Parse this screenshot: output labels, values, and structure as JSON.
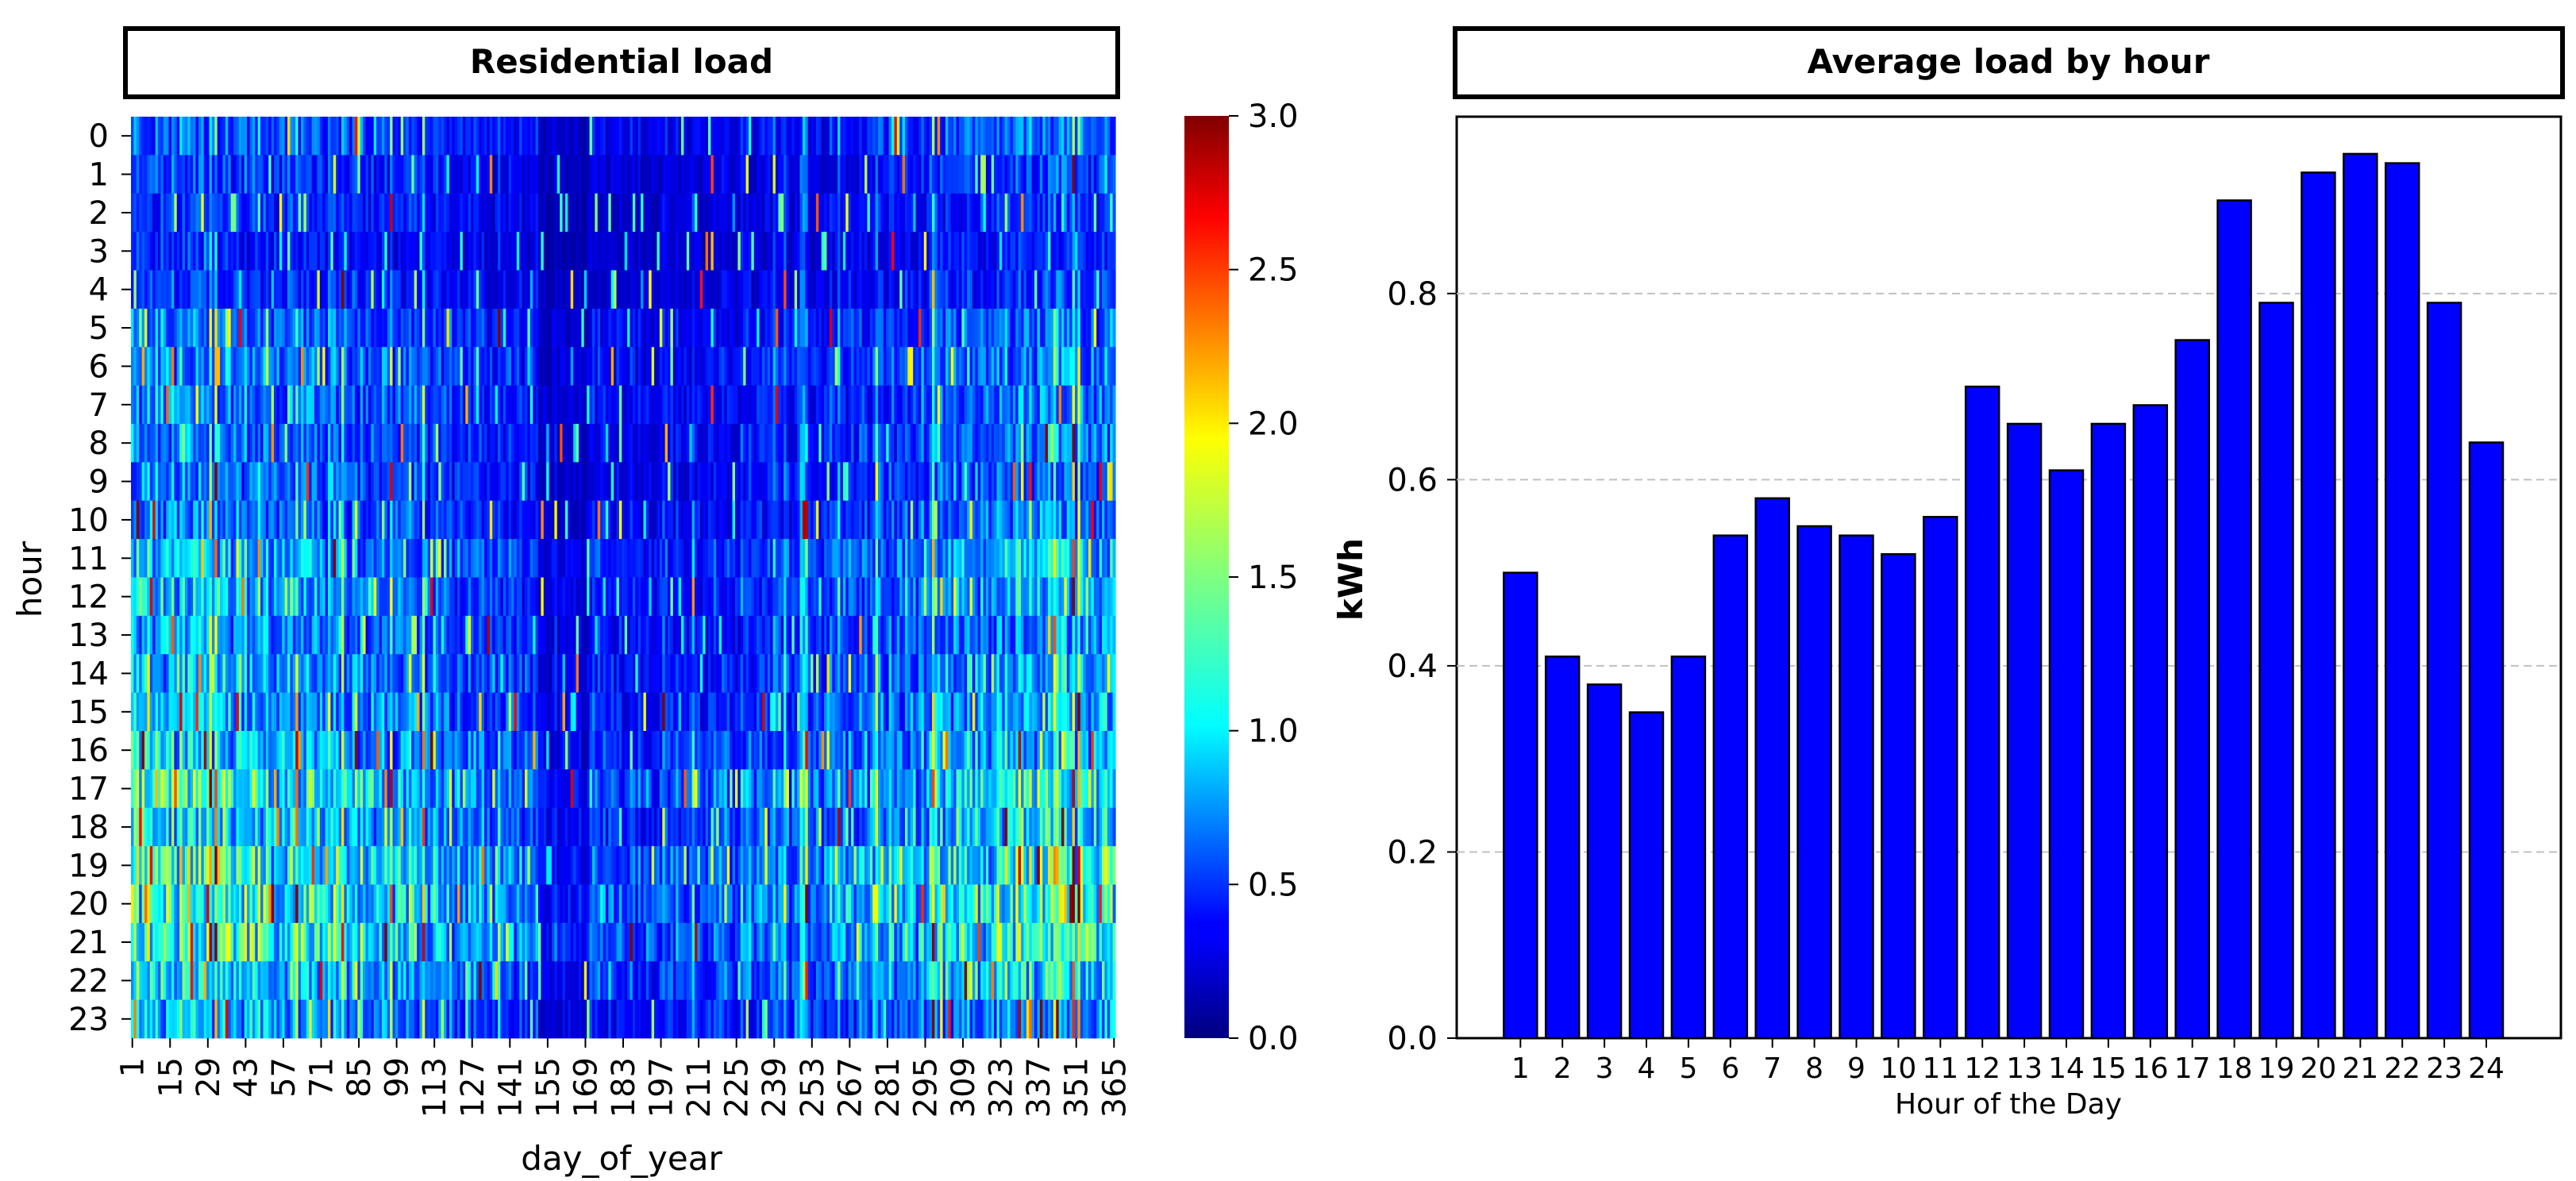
{
  "chart_data": [
    {
      "type": "heatmap",
      "title": "Residential load",
      "xlabel": "day_of_year",
      "ylabel": "hour",
      "x_ticks": [
        "1",
        "15",
        "29",
        "43",
        "57",
        "71",
        "85",
        "99",
        "113",
        "127",
        "141",
        "155",
        "169",
        "183",
        "197",
        "211",
        "225",
        "239",
        "253",
        "267",
        "281",
        "295",
        "309",
        "323",
        "337",
        "351",
        "365"
      ],
      "y_ticks": [
        "0",
        "1",
        "2",
        "3",
        "4",
        "5",
        "6",
        "7",
        "8",
        "9",
        "10",
        "11",
        "12",
        "13",
        "14",
        "15",
        "16",
        "17",
        "18",
        "19",
        "20",
        "21",
        "22",
        "23"
      ],
      "days": 365,
      "hours": 24,
      "colorbar": {
        "range": [
          0.0,
          3.0
        ],
        "ticks": [
          "0.0",
          "0.5",
          "1.0",
          "1.5",
          "2.0",
          "2.5",
          "3.0"
        ],
        "colormap": "jet"
      },
      "hourly_mean_kwh": [
        0.5,
        0.41,
        0.38,
        0.35,
        0.41,
        0.54,
        0.58,
        0.55,
        0.54,
        0.52,
        0.56,
        0.7,
        0.66,
        0.61,
        0.66,
        0.68,
        0.75,
        0.9,
        0.79,
        0.93,
        0.95,
        0.94,
        0.79,
        0.64
      ]
    },
    {
      "type": "bar",
      "title": "Average load by hour",
      "xlabel": "Hour of the Day",
      "ylabel": "kWh",
      "categories": [
        "1",
        "2",
        "3",
        "4",
        "5",
        "6",
        "7",
        "8",
        "9",
        "10",
        "11",
        "12",
        "13",
        "14",
        "15",
        "16",
        "17",
        "18",
        "19",
        "20",
        "21",
        "22",
        "23",
        "24"
      ],
      "values": [
        0.5,
        0.41,
        0.38,
        0.35,
        0.41,
        0.54,
        0.58,
        0.55,
        0.54,
        0.52,
        0.56,
        0.7,
        0.66,
        0.61,
        0.66,
        0.68,
        0.75,
        0.9,
        0.79,
        0.93,
        0.95,
        0.94,
        0.79,
        0.64
      ],
      "ylim": [
        0.0,
        0.99
      ],
      "y_ticks": [
        "0.0",
        "0.2",
        "0.4",
        "0.6",
        "0.8"
      ],
      "grid": "horizontal-dashed",
      "bar_color": "#0000ff"
    }
  ]
}
